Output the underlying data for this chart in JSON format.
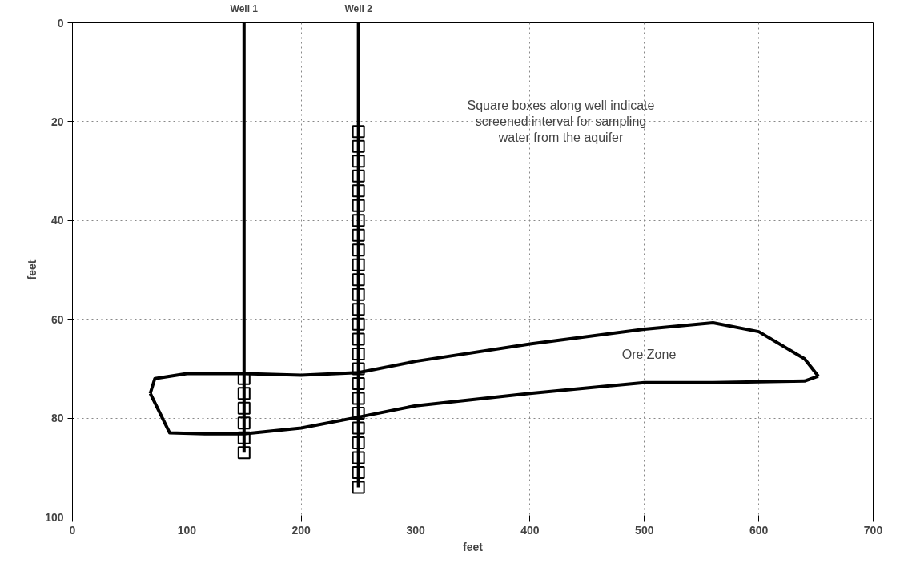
{
  "chart_data": {
    "type": "line",
    "xlabel": "feet",
    "ylabel": "feet",
    "xlim": [
      0,
      700
    ],
    "ylim": [
      100,
      0
    ],
    "xticks": [
      0,
      100,
      200,
      300,
      400,
      500,
      600,
      700
    ],
    "yticks": [
      0,
      20,
      40,
      60,
      80,
      100
    ],
    "grid": true,
    "series": [
      {
        "name": "Well 1",
        "marker": "none",
        "color": "#000000",
        "x": [
          150,
          150
        ],
        "values": [
          0,
          87
        ]
      },
      {
        "name": "Well 2",
        "marker": "none",
        "color": "#000000",
        "x": [
          250,
          250
        ],
        "values": [
          0,
          94
        ]
      },
      {
        "type": "scatter",
        "marker": "square",
        "color": "#000000",
        "x": [
          150,
          150,
          150,
          150,
          150,
          150
        ],
        "values": [
          72,
          75,
          78,
          81,
          84,
          87
        ]
      },
      {
        "type": "scatter",
        "marker": "square",
        "color": "#000000",
        "x": [
          250,
          250,
          250,
          250,
          250,
          250,
          250,
          250,
          250,
          250,
          250,
          250,
          250,
          250,
          250,
          250,
          250,
          250,
          250,
          250,
          250,
          250,
          250,
          250,
          250
        ],
        "values": [
          22,
          25,
          28,
          31,
          34,
          37,
          40,
          43,
          46,
          49,
          52,
          55,
          58,
          61,
          64,
          67,
          70,
          73,
          76,
          79,
          82,
          85,
          88,
          91,
          94
        ]
      },
      {
        "marker": "none",
        "color": "#000000",
        "x": [
          68,
          72,
          100,
          150,
          200,
          250,
          300,
          400,
          500,
          560,
          600,
          640,
          652
        ],
        "values": [
          75,
          72,
          71,
          71,
          71.3,
          70.8,
          68.5,
          65,
          62,
          60.7,
          62.5,
          68,
          71.5
        ]
      },
      {
        "marker": "none",
        "color": "#000000",
        "x": [
          68,
          85,
          120,
          150,
          200,
          250,
          300,
          400,
          500,
          560,
          640,
          652
        ],
        "values": [
          75,
          83,
          83.2,
          83.2,
          82,
          79.8,
          77.5,
          75,
          72.8,
          72.8,
          72.5,
          71.5
        ]
      }
    ],
    "annotations": [
      "Square boxes along well indicate\nscreened interval for sampling\nwater from the aquifer",
      "Ore Zone"
    ]
  }
}
